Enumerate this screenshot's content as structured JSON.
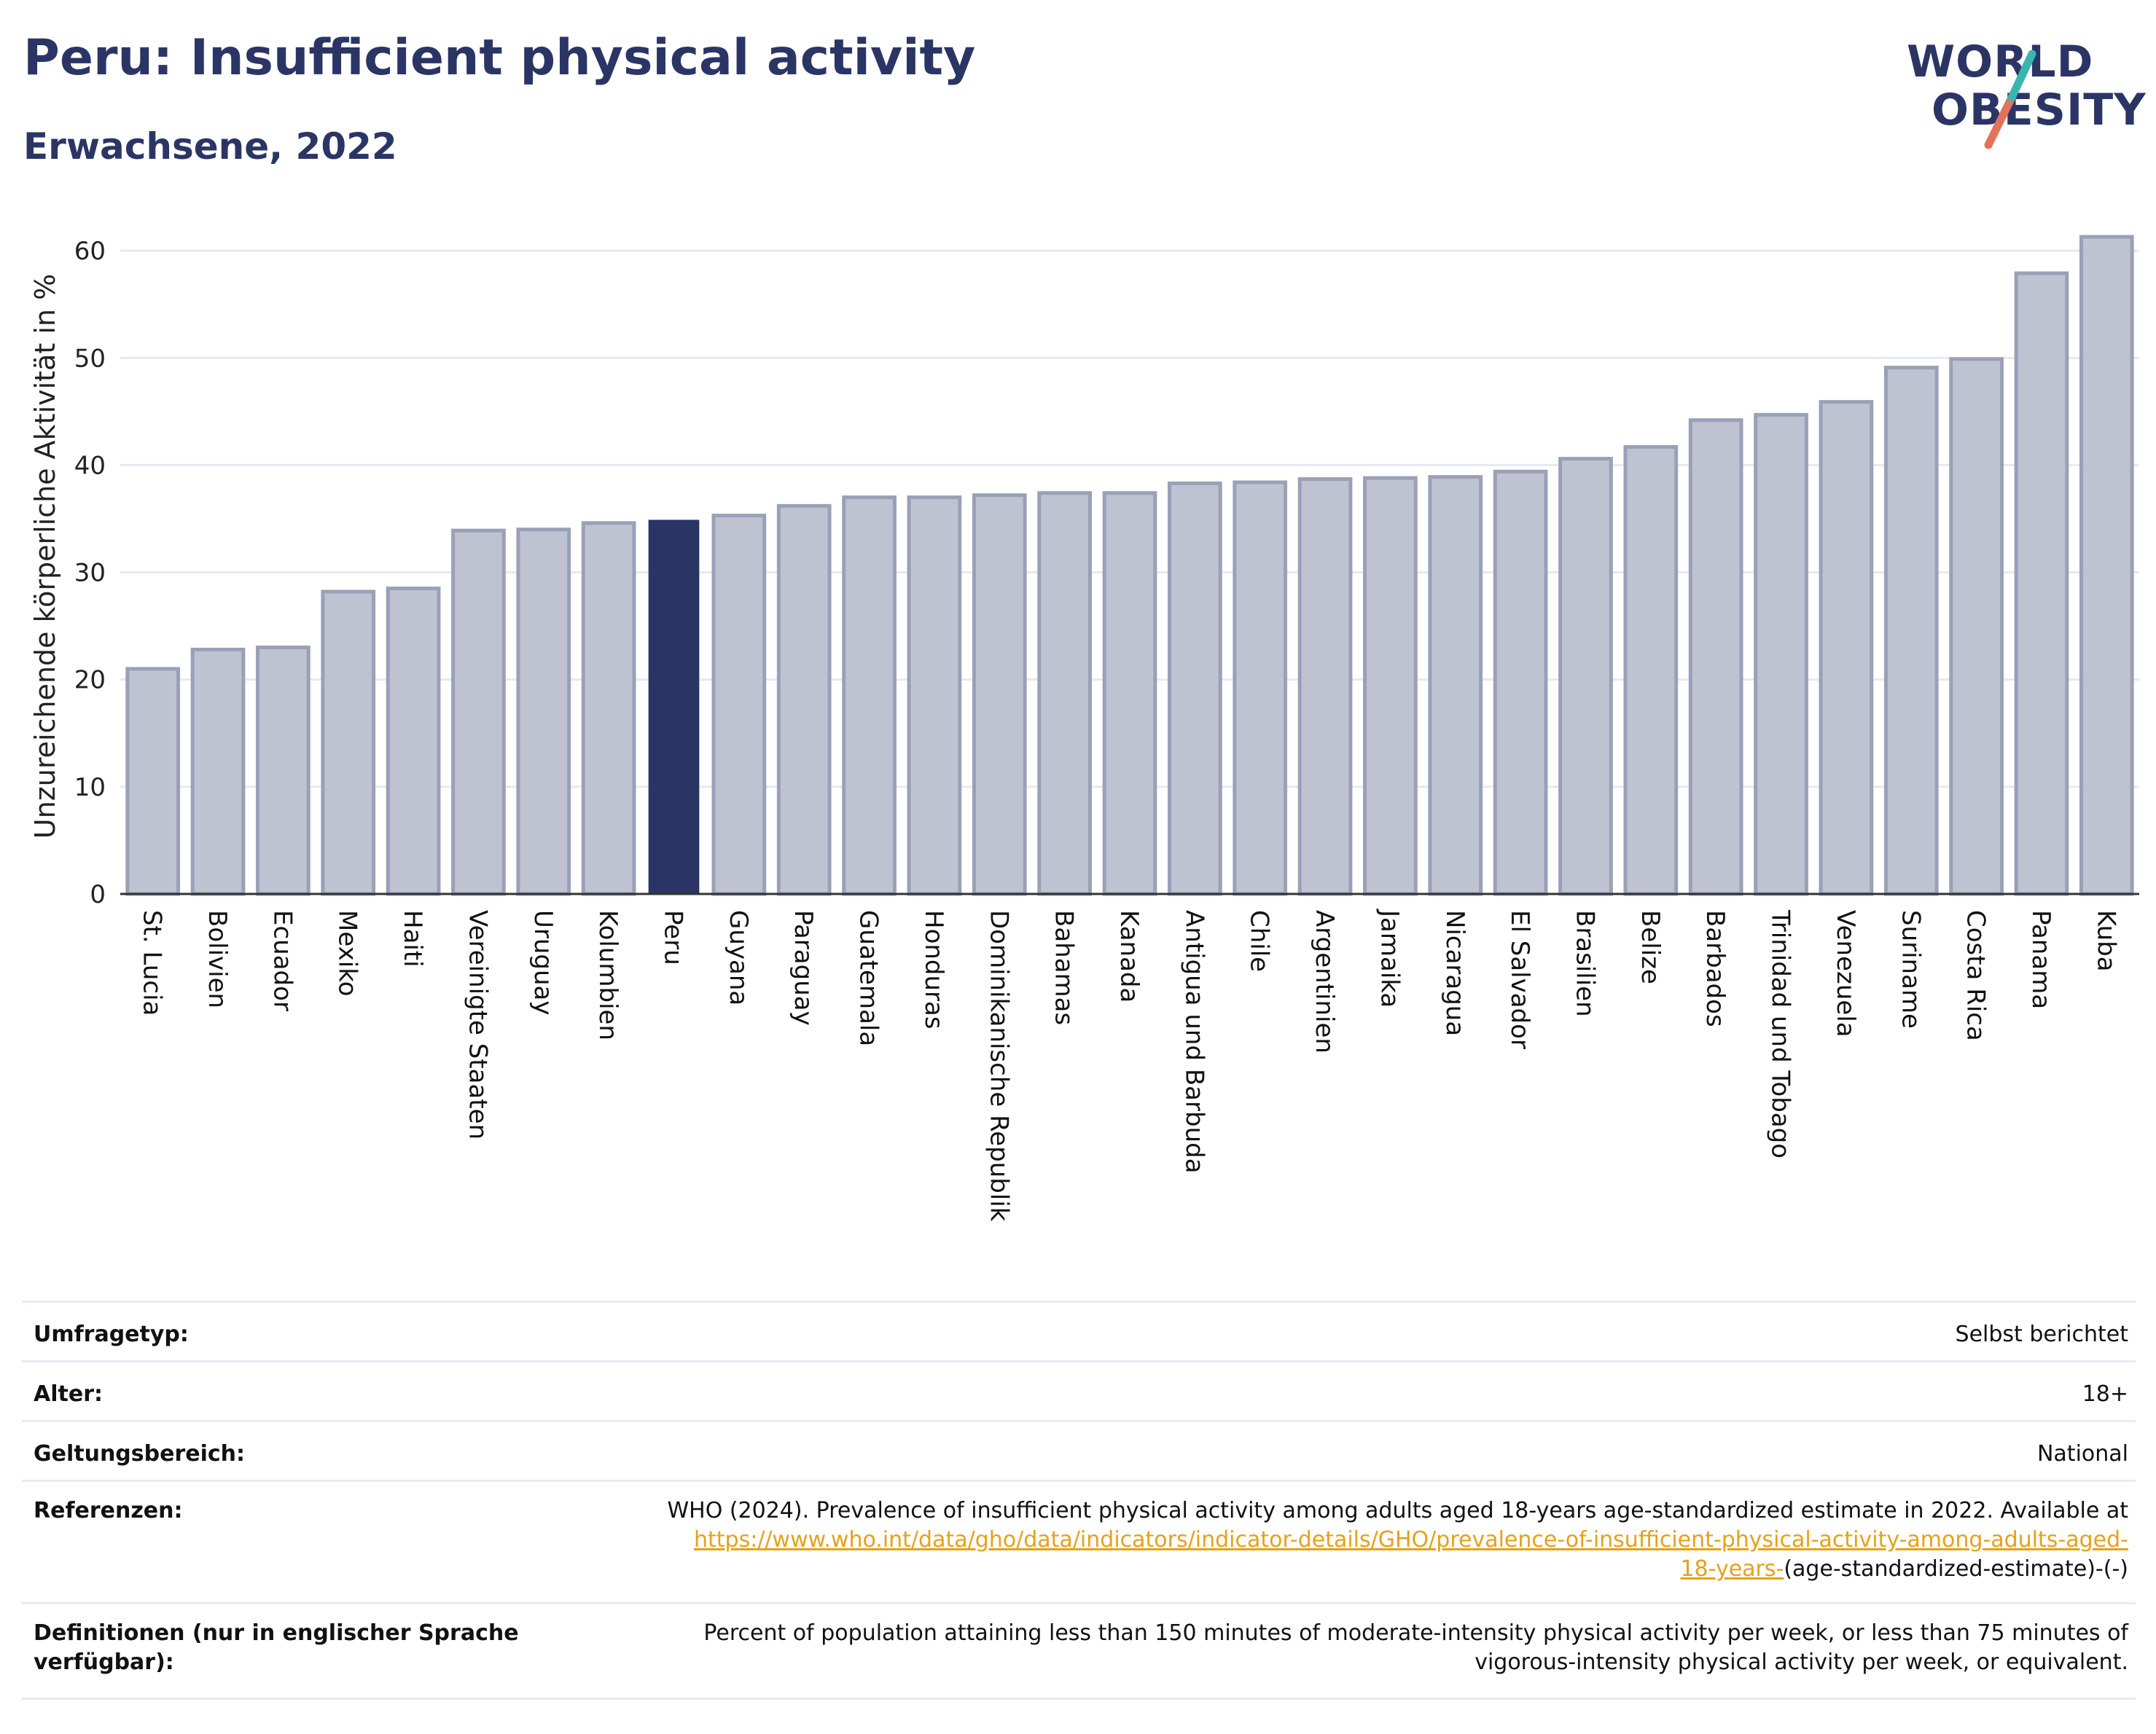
{
  "header": {
    "title": "Peru: Insufficient physical activity",
    "subtitle": "Erwachsene, 2022"
  },
  "logo": {
    "line1": "WORLD",
    "line2": "OBESITY"
  },
  "colors": {
    "highlight": "#2b3565",
    "bar": "#bfc2d0",
    "bar_edge": "#9aa0b8",
    "grid": "#e6e9f0"
  },
  "chart_data": {
    "type": "bar",
    "title": "",
    "xlabel": "",
    "ylabel": "Unzureichende körperliche Aktivität in %",
    "ylim": [
      0,
      63
    ],
    "yticks": [
      0,
      10,
      20,
      30,
      40,
      50,
      60
    ],
    "grid": true,
    "highlight": "Peru",
    "categories": [
      "St. Lucia",
      "Bolivien",
      "Ecuador",
      "Mexiko",
      "Haiti",
      "Vereinigte Staaten",
      "Uruguay",
      "Kolumbien",
      "Peru",
      "Guyana",
      "Paraguay",
      "Guatemala",
      "Honduras",
      "Dominikanische Republik",
      "Bahamas",
      "Kanada",
      "Antigua und Barbuda",
      "Chile",
      "Argentinien",
      "Jamaika",
      "Nicaragua",
      "El Salvador",
      "Brasilien",
      "Belize",
      "Barbados",
      "Trinidad und Tobago",
      "Venezuela",
      "Suriname",
      "Costa Rica",
      "Panama",
      "Kuba"
    ],
    "values": [
      21.0,
      22.8,
      23.0,
      28.2,
      28.5,
      33.9,
      34.0,
      34.6,
      34.9,
      35.3,
      36.2,
      37.0,
      37.0,
      37.2,
      37.4,
      37.4,
      38.3,
      38.4,
      38.7,
      38.8,
      38.9,
      39.4,
      40.6,
      41.7,
      44.2,
      44.7,
      45.9,
      49.1,
      49.9,
      57.9,
      61.3
    ]
  },
  "meta": {
    "survey_label": "Umfragetyp:",
    "survey_value": "Selbst berichtet",
    "age_label": "Alter:",
    "age_value": "18+",
    "scope_label": "Geltungsbereich:",
    "scope_value": "National",
    "ref_label": "Referenzen:",
    "ref_text1": "WHO (2024). Prevalence of insufficient physical activity among adults aged 18-years age-standardized estimate in 2022. Available at",
    "ref_link1": "https://www.who.int/data/gho/data/indicators/indicator-details/GHO/prevalence-of-insufficient-physical-activity-among-adults-aged-",
    "ref_link2": "18-years-",
    "ref_tail": "(age-standardized-estimate)-(-)",
    "def_label1": "Definitionen (nur in englischer Sprache",
    "def_label2": "verfügbar):",
    "def_text1": "Percent of population attaining less than 150 minutes of moderate-intensity physical activity per week, or less than 75 minutes of",
    "def_text2": "vigorous-intensity physical activity per week, or equivalent."
  }
}
